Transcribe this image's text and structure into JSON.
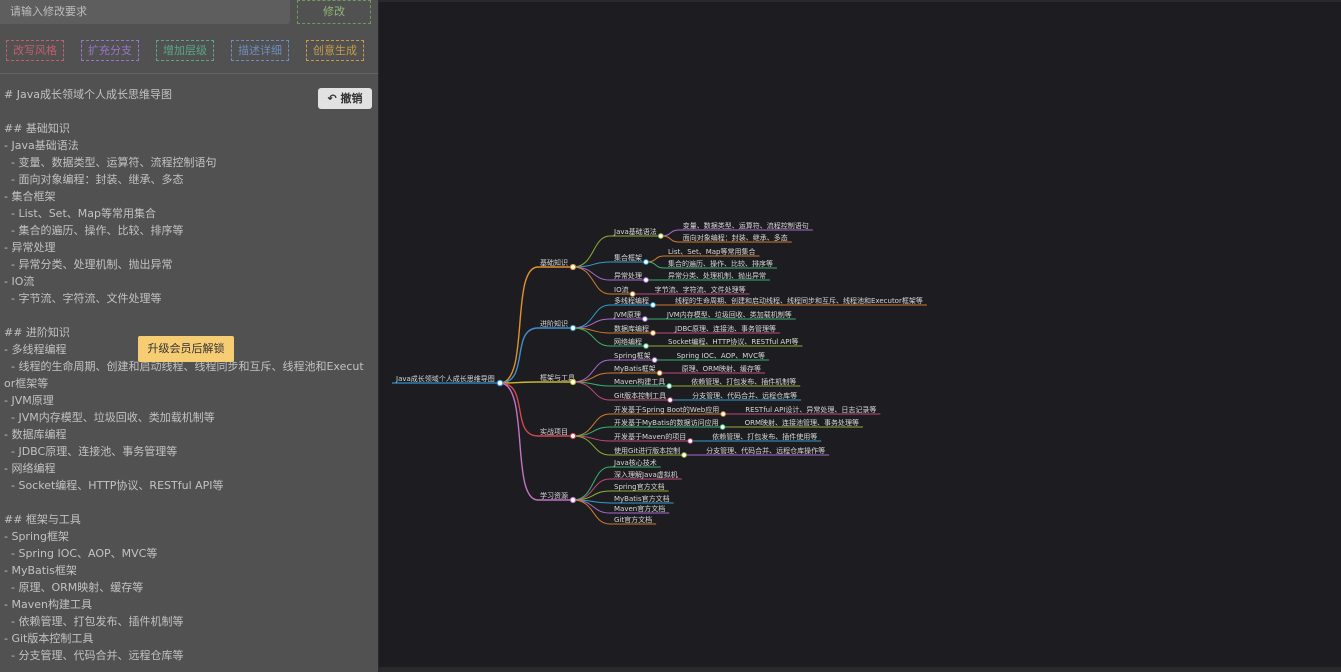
{
  "toolbar": {
    "input_placeholder": "请输入修改要求",
    "submit": "修改",
    "actions": [
      "改写风格",
      "扩充分支",
      "增加层级",
      "描述详细",
      "创意生成"
    ],
    "undo": "撤销"
  },
  "editor": {
    "sections": [
      [
        "# Java成长领域个人成长思维导图"
      ],
      [
        "## 基础知识",
        "- Java基础语法",
        "  - 变量、数据类型、运算符、流程控制语句",
        "  - 面向对象编程：封装、继承、多态",
        "- 集合框架",
        "  - List、Set、Map等常用集合",
        "  - 集合的遍历、操作、比较、排序等",
        "- 异常处理",
        "  - 异常分类、处理机制、抛出异常",
        "- IO流",
        "  - 字节流、字符流、文件处理等"
      ],
      [
        "## 进阶知识",
        "- 多线程编程",
        "  - 线程的生命周期、创建和启动线程、线程同步和互斥、线程池和Executor框架等",
        "- JVM原理",
        "  - JVM内存模型、垃圾回收、类加载机制等",
        "- 数据库编程",
        "  - JDBC原理、连接池、事务管理等",
        "- 网络编程",
        "  - Socket编程、HTTP协议、RESTful API等"
      ],
      [
        "## 框架与工具",
        "- Spring框架",
        "  - Spring IOC、AOP、MVC等",
        "- MyBatis框架",
        "  - 原理、ORM映射、缓存等",
        "- Maven构建工具",
        "  - 依赖管理、打包发布、插件机制等",
        "- Git版本控制工具",
        "  - 分支管理、代码合并、远程仓库等"
      ]
    ],
    "upgrade": "升级会员后解锁"
  },
  "mindmap": {
    "root": "Java成长领域个人成长思维导图",
    "branches": [
      {
        "label": "基础知识",
        "children": [
          {
            "label": "Java基础语法",
            "items": [
              "变量、数据类型、运算符、流程控制语句",
              "面向对象编程：封装、继承、多态"
            ]
          },
          {
            "label": "集合框架",
            "items": [
              "List、Set、Map等常用集合",
              "集合的遍历、操作、比较、排序等"
            ]
          },
          {
            "label": "异常处理",
            "items": [
              "异常分类、处理机制、抛出异常"
            ]
          },
          {
            "label": "IO流",
            "items": [
              "字节流、字符流、文件处理等"
            ]
          }
        ]
      },
      {
        "label": "进阶知识",
        "children": [
          {
            "label": "多线程编程",
            "items": [
              "线程的生命周期、创建和启动线程、线程同步和互斥、线程池和Executor框架等"
            ]
          },
          {
            "label": "JVM原理",
            "items": [
              "JVM内存模型、垃圾回收、类加载机制等"
            ]
          },
          {
            "label": "数据库编程",
            "items": [
              "JDBC原理、连接池、事务管理等"
            ]
          },
          {
            "label": "网络编程",
            "items": [
              "Socket编程、HTTP协议、RESTful API等"
            ]
          }
        ]
      },
      {
        "label": "框架与工具",
        "children": [
          {
            "label": "Spring框架",
            "items": [
              "Spring IOC、AOP、MVC等"
            ]
          },
          {
            "label": "MyBatis框架",
            "items": [
              "原理、ORM映射、缓存等"
            ]
          },
          {
            "label": "Maven构建工具",
            "items": [
              "依赖管理、打包发布、插件机制等"
            ]
          },
          {
            "label": "Git版本控制工具",
            "items": [
              "分支管理、代码合并、远程仓库等"
            ]
          }
        ]
      },
      {
        "label": "实战项目",
        "children": [
          {
            "label": "开发基于Spring Boot的Web应用",
            "items": [
              "RESTful API设计、异常处理、日志记录等"
            ]
          },
          {
            "label": "开发基于MyBatis的数据访问应用",
            "items": [
              "ORM映射、连接池管理、事务处理等"
            ]
          },
          {
            "label": "开发基于Maven的项目",
            "items": [
              "依赖管理、打包发布、插件使用等"
            ]
          },
          {
            "label": "使用Git进行版本控制",
            "items": [
              "分支管理、代码合并、远程仓库操作等"
            ]
          }
        ]
      },
      {
        "label": "学习资源",
        "children": [
          {
            "label": "Java核心技术"
          },
          {
            "label": "深入理解Java虚拟机"
          },
          {
            "label": "Spring官方文档"
          },
          {
            "label": "MyBatis官方文档"
          },
          {
            "label": "Maven官方文档"
          },
          {
            "label": "Git官方文档"
          }
        ]
      }
    ]
  }
}
